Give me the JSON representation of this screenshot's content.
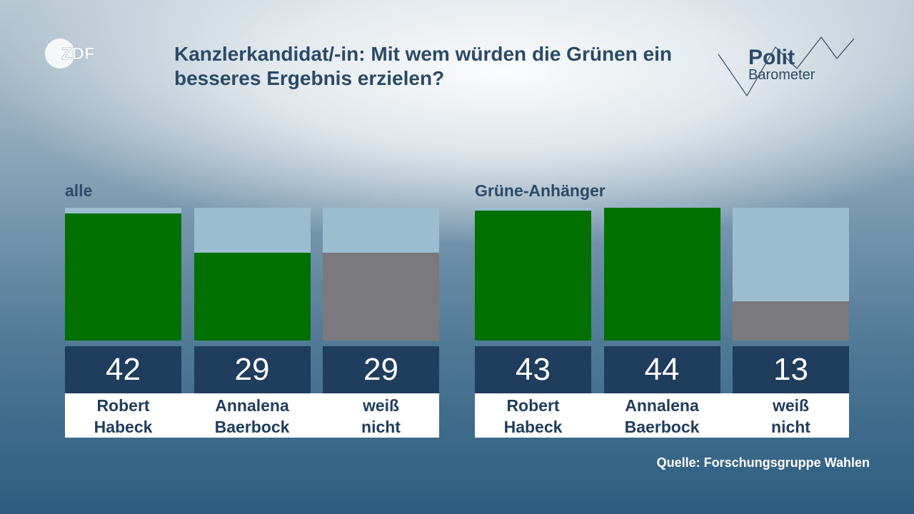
{
  "brand": {
    "channel": "ZDF",
    "program_line1": "Polit",
    "program_line2": "Barometer"
  },
  "title": "Kanzlerkandidat/-in: Mit wem würden die Grünen ein besseres Ergebnis erzielen?",
  "source": "Quelle: Forschungsgruppe Wahlen",
  "colors": {
    "green": "#007000",
    "grey": "#7a7a7e",
    "bar_background": "#9cbdd0",
    "value_box": "#1f3d5c",
    "title": "#2b4a68"
  },
  "chart_data": [
    {
      "type": "bar",
      "panel_label": "alle",
      "categories": [
        {
          "line1": "Robert",
          "line2": "Habeck"
        },
        {
          "line1": "Annalena",
          "line2": "Baerbock"
        },
        {
          "line1": "weiß",
          "line2": "nicht"
        }
      ],
      "values": [
        42,
        29,
        29
      ],
      "value_labels": [
        "42",
        "29",
        "29"
      ],
      "bar_colors": [
        "green",
        "green",
        "grey"
      ],
      "unit": "%",
      "ylim": [
        0,
        44
      ]
    },
    {
      "type": "bar",
      "panel_label": "Grüne-Anhänger",
      "categories": [
        {
          "line1": "Robert",
          "line2": "Habeck"
        },
        {
          "line1": "Annalena",
          "line2": "Baerbock"
        },
        {
          "line1": "weiß",
          "line2": "nicht"
        }
      ],
      "values": [
        43,
        44,
        13
      ],
      "value_labels": [
        "43",
        "44",
        "13"
      ],
      "bar_colors": [
        "green",
        "green",
        "grey"
      ],
      "unit": "%",
      "ylim": [
        0,
        44
      ]
    }
  ]
}
